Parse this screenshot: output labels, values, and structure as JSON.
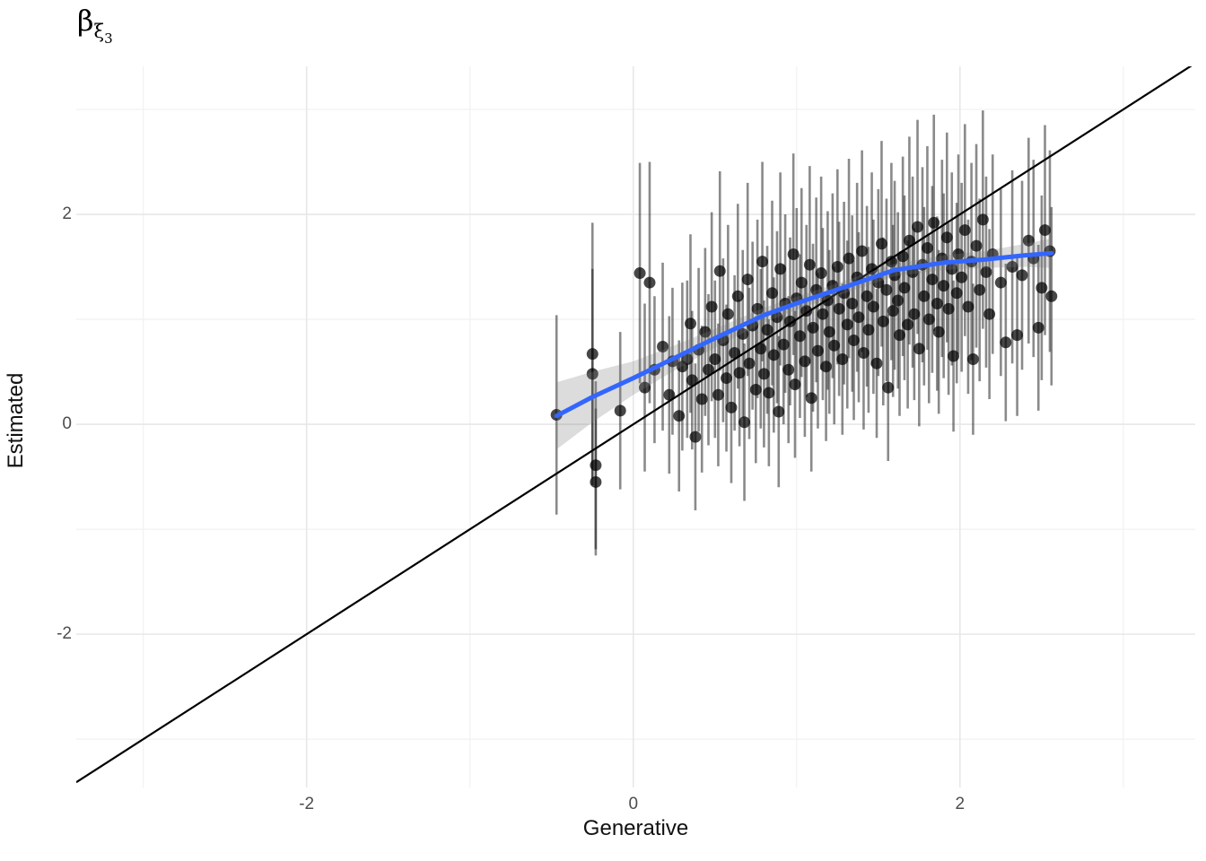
{
  "title": {
    "symbol": "β",
    "subscript": "ξ",
    "subsubscript": "3"
  },
  "x_axis": {
    "label": "Generative",
    "tick_values": [
      -2,
      0,
      2
    ],
    "tick_labels": [
      "-2",
      "0",
      "2"
    ],
    "minor_ticks": [
      -3,
      -1,
      1,
      3
    ],
    "limits": [
      -3.41,
      3.44
    ]
  },
  "y_axis": {
    "label": "Estimated",
    "tick_values": [
      -2,
      0,
      2
    ],
    "tick_labels": [
      "-2",
      "0",
      "2"
    ],
    "minor_ticks": [
      -3,
      -1,
      1,
      3
    ],
    "limits": [
      -3.46,
      3.41
    ]
  },
  "colors": {
    "background": "#FFFFFF",
    "grid_major": "#E7E7E7",
    "grid_minor": "#F2F2F2",
    "identity_line": "#000000",
    "smooth_line": "#3366FF",
    "ribbon": "rgba(125,125,125,0.27)",
    "error_bar": "rgba(22,22,22,0.5)",
    "point": "rgba(0,0,0,0.72)",
    "tick_text": "#4D4D4D",
    "axis_title_text": "#111111"
  },
  "chart_data": {
    "type": "scatter",
    "title": "beta_xi_3",
    "xlabel": "Generative",
    "ylabel": "Estimated",
    "xlim": [
      -3.41,
      3.44
    ],
    "ylim": [
      -3.46,
      3.41
    ],
    "grid": true,
    "legend": false,
    "identity_line": {
      "slope": 1,
      "intercept": 0
    },
    "point_format": "[x, y, interval_half_width]",
    "smooth": [
      [
        -0.47,
        0.08
      ],
      [
        -0.25,
        0.26
      ],
      [
        0,
        0.44
      ],
      [
        0.25,
        0.63
      ],
      [
        0.5,
        0.82
      ],
      [
        0.8,
        1.04
      ],
      [
        1.05,
        1.18
      ],
      [
        1.3,
        1.31
      ],
      [
        1.6,
        1.47
      ],
      [
        1.9,
        1.54
      ],
      [
        2.15,
        1.57
      ],
      [
        2.4,
        1.61
      ],
      [
        2.56,
        1.63
      ]
    ],
    "ribbon": [
      [
        -0.47,
        -0.24,
        0.4
      ],
      [
        -0.25,
        0.02,
        0.5
      ],
      [
        0,
        0.28,
        0.6
      ],
      [
        0.25,
        0.51,
        0.75
      ],
      [
        0.5,
        0.73,
        0.91
      ],
      [
        0.8,
        0.97,
        1.11
      ],
      [
        1.05,
        1.12,
        1.24
      ],
      [
        1.3,
        1.25,
        1.37
      ],
      [
        1.6,
        1.41,
        1.53
      ],
      [
        1.9,
        1.47,
        1.61
      ],
      [
        2.15,
        1.49,
        1.65
      ],
      [
        2.4,
        1.5,
        1.72
      ],
      [
        2.56,
        1.49,
        1.77
      ]
    ],
    "points": [
      [
        -0.47,
        0.09,
        0.95
      ],
      [
        -0.25,
        0.67,
        1.25
      ],
      [
        -0.25,
        0.48,
        1.0
      ],
      [
        -0.23,
        -0.39,
        0.8
      ],
      [
        -0.23,
        -0.55,
        0.7
      ],
      [
        -0.08,
        0.13,
        0.75
      ],
      [
        0.04,
        1.44,
        1.05
      ],
      [
        0.1,
        1.35,
        1.15
      ],
      [
        0.07,
        0.35,
        0.8
      ],
      [
        0.13,
        0.52,
        0.7
      ],
      [
        0.18,
        0.74,
        0.8
      ],
      [
        0.22,
        0.28,
        0.75
      ],
      [
        0.24,
        0.6,
        0.7
      ],
      [
        0.28,
        0.08,
        0.72
      ],
      [
        0.3,
        0.55,
        0.8
      ],
      [
        0.33,
        0.62,
        0.75
      ],
      [
        0.35,
        0.96,
        0.85
      ],
      [
        0.36,
        0.42,
        0.66
      ],
      [
        0.38,
        -0.12,
        0.7
      ],
      [
        0.4,
        0.71,
        0.78
      ],
      [
        0.42,
        0.24,
        0.7
      ],
      [
        0.44,
        0.88,
        0.8
      ],
      [
        0.46,
        0.52,
        0.72
      ],
      [
        0.48,
        1.12,
        0.9
      ],
      [
        0.5,
        0.62,
        0.75
      ],
      [
        0.52,
        0.28,
        0.68
      ],
      [
        0.53,
        1.46,
        0.95
      ],
      [
        0.55,
        0.8,
        0.78
      ],
      [
        0.57,
        0.44,
        0.7
      ],
      [
        0.58,
        1.05,
        0.85
      ],
      [
        0.6,
        0.16,
        0.72
      ],
      [
        0.62,
        0.68,
        0.74
      ],
      [
        0.64,
        1.22,
        0.88
      ],
      [
        0.65,
        0.49,
        0.7
      ],
      [
        0.67,
        0.86,
        0.8
      ],
      [
        0.68,
        0.02,
        0.75
      ],
      [
        0.7,
        1.38,
        0.92
      ],
      [
        0.71,
        0.58,
        0.72
      ],
      [
        0.73,
        0.94,
        0.8
      ],
      [
        0.75,
        0.33,
        0.7
      ],
      [
        0.76,
        1.1,
        0.85
      ],
      [
        0.78,
        0.72,
        0.76
      ],
      [
        0.79,
        1.55,
        0.95
      ],
      [
        0.8,
        0.48,
        0.7
      ],
      [
        0.82,
        0.9,
        0.8
      ],
      [
        0.83,
        0.3,
        0.7
      ],
      [
        0.85,
        1.25,
        0.88
      ],
      [
        0.86,
        0.66,
        0.74
      ],
      [
        0.88,
        1.02,
        0.82
      ],
      [
        0.89,
        0.12,
        0.72
      ],
      [
        0.9,
        1.48,
        0.92
      ],
      [
        0.92,
        0.76,
        0.76
      ],
      [
        0.93,
        1.15,
        0.85
      ],
      [
        0.95,
        0.52,
        0.7
      ],
      [
        0.96,
        0.98,
        0.8
      ],
      [
        0.98,
        1.62,
        0.96
      ],
      [
        0.99,
        0.38,
        0.7
      ],
      [
        1.0,
        1.2,
        0.86
      ],
      [
        1.02,
        0.84,
        0.78
      ],
      [
        1.03,
        1.35,
        0.9
      ],
      [
        1.05,
        0.6,
        0.72
      ],
      [
        1.06,
        1.08,
        0.82
      ],
      [
        1.08,
        1.52,
        0.94
      ],
      [
        1.09,
        0.25,
        0.7
      ],
      [
        1.1,
        0.92,
        0.8
      ],
      [
        1.12,
        1.28,
        0.88
      ],
      [
        1.13,
        0.7,
        0.74
      ],
      [
        1.15,
        1.44,
        0.92
      ],
      [
        1.16,
        1.05,
        0.82
      ],
      [
        1.18,
        0.55,
        0.71
      ],
      [
        1.19,
        1.18,
        0.85
      ],
      [
        1.2,
        0.88,
        0.78
      ],
      [
        1.22,
        1.32,
        0.88
      ],
      [
        1.23,
        0.75,
        0.75
      ],
      [
        1.25,
        1.5,
        0.93
      ],
      [
        1.26,
        1.1,
        0.83
      ],
      [
        1.28,
        0.62,
        0.72
      ],
      [
        1.29,
        1.25,
        0.87
      ],
      [
        1.31,
        0.95,
        0.8
      ],
      [
        1.32,
        1.58,
        0.95
      ],
      [
        1.34,
        1.15,
        0.84
      ],
      [
        1.35,
        0.8,
        0.76
      ],
      [
        1.37,
        1.4,
        0.9
      ],
      [
        1.38,
        1.02,
        0.81
      ],
      [
        1.4,
        1.65,
        0.96
      ],
      [
        1.41,
        0.68,
        0.73
      ],
      [
        1.43,
        1.22,
        0.86
      ],
      [
        1.44,
        0.9,
        0.79
      ],
      [
        1.46,
        1.48,
        0.92
      ],
      [
        1.47,
        1.12,
        0.83
      ],
      [
        1.49,
        0.58,
        0.71
      ],
      [
        1.5,
        1.35,
        0.89
      ],
      [
        1.52,
        1.72,
        0.98
      ],
      [
        1.53,
        0.98,
        0.8
      ],
      [
        1.55,
        1.28,
        0.87
      ],
      [
        1.56,
        0.35,
        0.7
      ],
      [
        1.58,
        1.55,
        0.94
      ],
      [
        1.59,
        1.08,
        0.82
      ],
      [
        1.6,
        1.42,
        0.9
      ],
      [
        1.62,
        1.18,
        0.84
      ],
      [
        1.63,
        0.85,
        0.77
      ],
      [
        1.65,
        1.6,
        0.95
      ],
      [
        1.66,
        1.3,
        0.88
      ],
      [
        1.68,
        0.95,
        0.8
      ],
      [
        1.69,
        1.75,
        0.99
      ],
      [
        1.71,
        1.45,
        0.91
      ],
      [
        1.72,
        1.05,
        0.82
      ],
      [
        1.74,
        1.88,
        1.02
      ],
      [
        1.75,
        0.72,
        0.74
      ],
      [
        1.77,
        1.52,
        0.93
      ],
      [
        1.78,
        1.22,
        0.85
      ],
      [
        1.8,
        1.68,
        0.97
      ],
      [
        1.81,
        1.0,
        0.8
      ],
      [
        1.83,
        1.38,
        0.89
      ],
      [
        1.84,
        1.92,
        1.03
      ],
      [
        1.86,
        1.15,
        0.83
      ],
      [
        1.87,
        0.88,
        0.78
      ],
      [
        1.89,
        1.58,
        0.94
      ],
      [
        1.9,
        1.32,
        0.88
      ],
      [
        1.92,
        1.78,
        1.0
      ],
      [
        1.93,
        1.1,
        0.82
      ],
      [
        1.95,
        1.48,
        0.92
      ],
      [
        1.96,
        0.65,
        0.72
      ],
      [
        1.98,
        1.25,
        0.86
      ],
      [
        1.99,
        1.62,
        0.95
      ],
      [
        2.01,
        1.4,
        0.9
      ],
      [
        2.03,
        1.85,
        1.01
      ],
      [
        2.05,
        1.12,
        0.83
      ],
      [
        2.07,
        1.55,
        0.94
      ],
      [
        2.08,
        0.62,
        0.72
      ],
      [
        2.1,
        1.7,
        0.97
      ],
      [
        2.12,
        1.28,
        0.87
      ],
      [
        2.14,
        1.95,
        1.04
      ],
      [
        2.16,
        1.45,
        0.91
      ],
      [
        2.18,
        1.05,
        0.81
      ],
      [
        2.2,
        1.62,
        0.95
      ],
      [
        2.25,
        1.35,
        0.89
      ],
      [
        2.28,
        0.78,
        0.75
      ],
      [
        2.32,
        1.5,
        0.92
      ],
      [
        2.35,
        0.85,
        0.77
      ],
      [
        2.38,
        1.42,
        0.9
      ],
      [
        2.42,
        1.75,
        0.98
      ],
      [
        2.45,
        1.58,
        0.94
      ],
      [
        2.48,
        0.92,
        0.79
      ],
      [
        2.5,
        1.3,
        0.88
      ],
      [
        2.52,
        1.85,
        1.0
      ],
      [
        2.55,
        1.65,
        0.96
      ],
      [
        2.56,
        1.22,
        0.85
      ]
    ]
  }
}
